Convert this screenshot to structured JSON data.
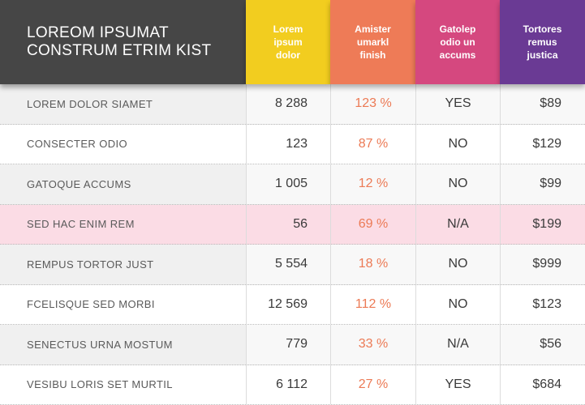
{
  "title": {
    "line1": "LOREOM IPSUMAT",
    "line2": "CONSTRUM ETRIM KIST"
  },
  "columns": [
    {
      "lines": [
        "Lorem",
        "ipsum",
        "dolor"
      ],
      "color": "#F2CD1F"
    },
    {
      "lines": [
        "Amister",
        "umarkl",
        "finish"
      ],
      "color": "#EE7B57"
    },
    {
      "lines": [
        "Gatolep",
        "odio un",
        "accums"
      ],
      "color": "#D5487F"
    },
    {
      "lines": [
        "Tortores",
        "remus",
        "justica"
      ],
      "color": "#6A3A94"
    }
  ],
  "rows": [
    {
      "label": "LOREM DOLOR SIAMET",
      "num": "8 288",
      "pct": "123 %",
      "yn": "YES",
      "price": "$89"
    },
    {
      "label": "CONSECTER ODIO",
      "num": "123",
      "pct": "87 %",
      "yn": "NO",
      "price": "$129"
    },
    {
      "label": "GATOQUE ACCUMS",
      "num": "1 005",
      "pct": "12 %",
      "yn": "NO",
      "price": "$99"
    },
    {
      "label": "SED HAC ENIM REM",
      "num": "56",
      "pct": "69 %",
      "yn": "N/A",
      "price": "$199"
    },
    {
      "label": "REMPUS TORTOR JUST",
      "num": "5 554",
      "pct": "18 %",
      "yn": "NO",
      "price": "$999"
    },
    {
      "label": "FCELISQUE SED MORBI",
      "num": "12 569",
      "pct": "112 %",
      "yn": "NO",
      "price": "$123"
    },
    {
      "label": "SENECTUS URNA MOSTUM",
      "num": "779",
      "pct": "33 %",
      "yn": "N/A",
      "price": "$56"
    },
    {
      "label": "VESIBU LORIS SET MURTIL",
      "num": "6 112",
      "pct": "27 %",
      "yn": "YES",
      "price": "$684"
    }
  ],
  "highlight_row_color": "#FBDCE5",
  "accent_pct_color": "#EC7A55"
}
